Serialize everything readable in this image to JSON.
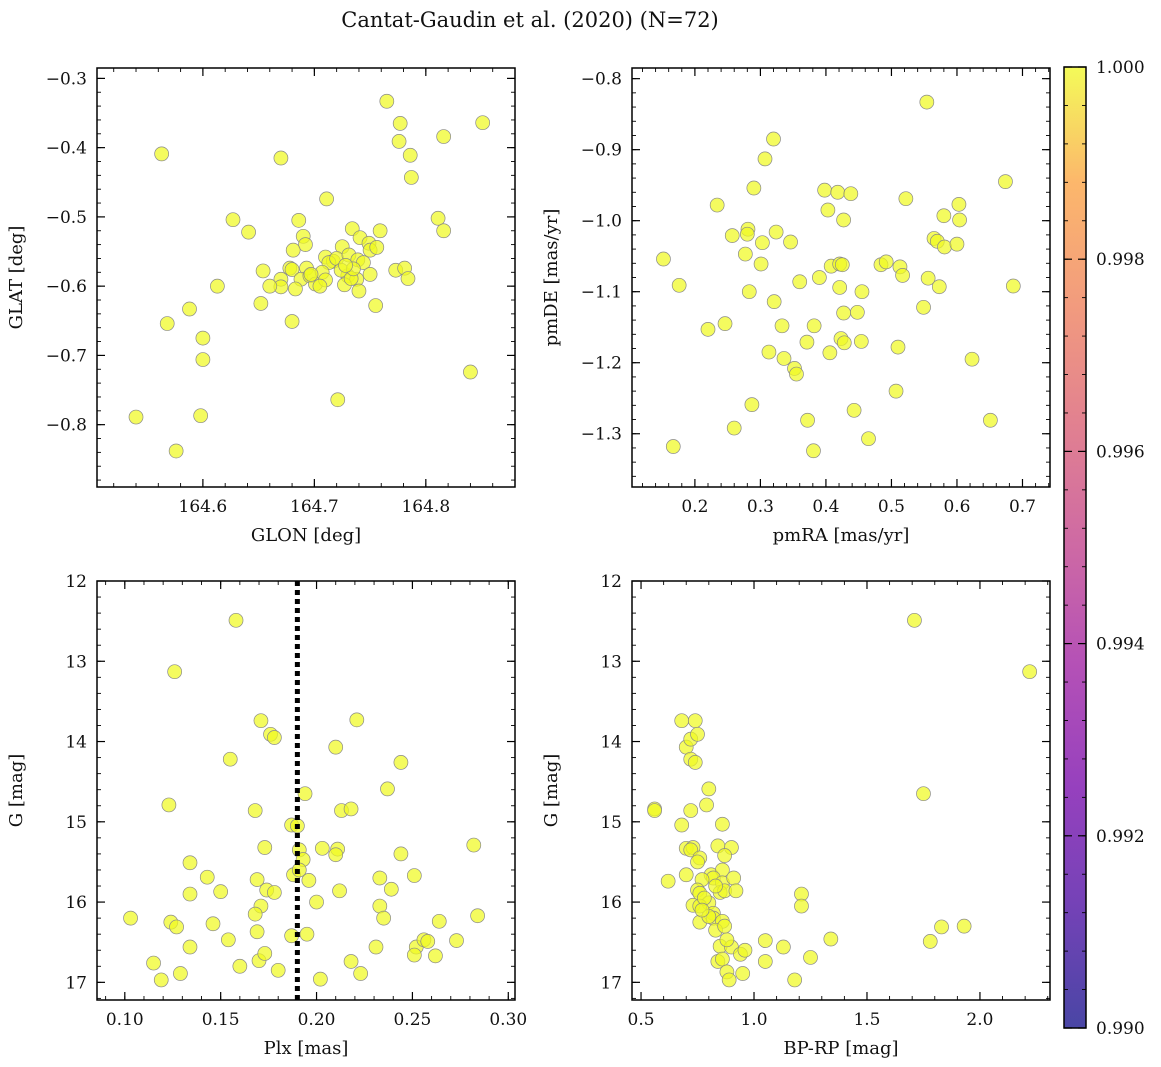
{
  "title": "Cantat-Gaudin et al. (2020) (N=72)",
  "colorbar": {
    "min": 0.99,
    "max": 1.0,
    "ticks": [
      "0.990",
      "0.992",
      "0.994",
      "0.996",
      "0.998",
      "1.000"
    ],
    "colormap": "plasma"
  },
  "chart_data": [
    {
      "type": "scatter",
      "name": "glon-glat",
      "xlabel": "GLON [deg]",
      "ylabel": "GLAT [deg]",
      "xlim": [
        164.505,
        164.88
      ],
      "ylim": [
        -0.89,
        -0.285
      ],
      "xticks": [
        {
          "v": 164.6,
          "l": "164.6"
        },
        {
          "v": 164.7,
          "l": "164.7"
        },
        {
          "v": 164.8,
          "l": "164.8"
        }
      ],
      "yticks": [
        {
          "v": -0.3,
          "l": "−0.3"
        },
        {
          "v": -0.4,
          "l": "−0.4"
        },
        {
          "v": -0.5,
          "l": "−0.5"
        },
        {
          "v": -0.6,
          "l": "−0.6"
        },
        {
          "v": -0.7,
          "l": "−0.7"
        },
        {
          "v": -0.8,
          "l": "−0.8"
        }
      ],
      "xminor": 0.02,
      "yminor": 0.02,
      "points": [
        [
          164.563,
          -0.409
        ],
        [
          164.67,
          -0.415
        ],
        [
          164.765,
          -0.333
        ],
        [
          164.777,
          -0.365
        ],
        [
          164.776,
          -0.391
        ],
        [
          164.786,
          -0.411
        ],
        [
          164.816,
          -0.384
        ],
        [
          164.851,
          -0.364
        ],
        [
          164.787,
          -0.443
        ],
        [
          164.711,
          -0.474
        ],
        [
          164.627,
          -0.504
        ],
        [
          164.641,
          -0.522
        ],
        [
          164.686,
          -0.505
        ],
        [
          164.69,
          -0.528
        ],
        [
          164.692,
          -0.54
        ],
        [
          164.681,
          -0.548
        ],
        [
          164.725,
          -0.543
        ],
        [
          164.734,
          -0.517
        ],
        [
          164.741,
          -0.53
        ],
        [
          164.749,
          -0.538
        ],
        [
          164.75,
          -0.548
        ],
        [
          164.756,
          -0.544
        ],
        [
          164.759,
          -0.52
        ],
        [
          164.811,
          -0.502
        ],
        [
          164.816,
          -0.52
        ],
        [
          164.71,
          -0.558
        ],
        [
          164.717,
          -0.564
        ],
        [
          164.713,
          -0.566
        ],
        [
          164.72,
          -0.56
        ],
        [
          164.731,
          -0.555
        ],
        [
          164.739,
          -0.562
        ],
        [
          164.744,
          -0.566
        ],
        [
          164.73,
          -0.585
        ],
        [
          164.738,
          -0.59
        ],
        [
          164.654,
          -0.578
        ],
        [
          164.67,
          -0.59
        ],
        [
          164.678,
          -0.574
        ],
        [
          164.68,
          -0.576
        ],
        [
          164.693,
          -0.574
        ],
        [
          164.688,
          -0.59
        ],
        [
          164.696,
          -0.585
        ],
        [
          164.701,
          -0.597
        ],
        [
          164.707,
          -0.58
        ],
        [
          164.71,
          -0.591
        ],
        [
          164.724,
          -0.577
        ],
        [
          164.727,
          -0.598
        ],
        [
          164.733,
          -0.589
        ],
        [
          164.74,
          -0.607
        ],
        [
          164.773,
          -0.577
        ],
        [
          164.781,
          -0.574
        ],
        [
          164.784,
          -0.589
        ],
        [
          164.613,
          -0.6
        ],
        [
          164.67,
          -0.601
        ],
        [
          164.683,
          -0.604
        ],
        [
          164.652,
          -0.625
        ],
        [
          164.755,
          -0.628
        ],
        [
          164.68,
          -0.651
        ],
        [
          164.588,
          -0.633
        ],
        [
          164.568,
          -0.654
        ],
        [
          164.6,
          -0.675
        ],
        [
          164.6,
          -0.706
        ],
        [
          164.721,
          -0.764
        ],
        [
          164.84,
          -0.724
        ],
        [
          164.54,
          -0.789
        ],
        [
          164.598,
          -0.787
        ],
        [
          164.576,
          -0.838
        ],
        [
          164.697,
          -0.583
        ],
        [
          164.705,
          -0.6
        ],
        [
          164.735,
          -0.575
        ],
        [
          164.75,
          -0.583
        ],
        [
          164.66,
          -0.6
        ],
        [
          164.728,
          -0.57
        ]
      ]
    },
    {
      "type": "scatter",
      "name": "pmra-pmde",
      "xlabel": "pmRA [mas/yr]",
      "ylabel": "pmDE [mas/yr]",
      "xlim": [
        0.104,
        0.742
      ],
      "ylim": [
        -1.375,
        -0.785
      ],
      "xticks": [
        {
          "v": 0.2,
          "l": "0.2"
        },
        {
          "v": 0.3,
          "l": "0.3"
        },
        {
          "v": 0.4,
          "l": "0.4"
        },
        {
          "v": 0.5,
          "l": "0.5"
        },
        {
          "v": 0.6,
          "l": "0.6"
        },
        {
          "v": 0.7,
          "l": "0.7"
        }
      ],
      "yticks": [
        {
          "v": -0.8,
          "l": "−0.8"
        },
        {
          "v": -0.9,
          "l": "−0.9"
        },
        {
          "v": -1.0,
          "l": "−1.0"
        },
        {
          "v": -1.1,
          "l": "−1.1"
        },
        {
          "v": -1.2,
          "l": "−1.2"
        },
        {
          "v": -1.3,
          "l": "−1.3"
        }
      ],
      "xminor": 0.02,
      "yminor": 0.02,
      "points": [
        [
          0.554,
          -0.833
        ],
        [
          0.32,
          -0.885
        ],
        [
          0.307,
          -0.913
        ],
        [
          0.29,
          -0.954
        ],
        [
          0.674,
          -0.945
        ],
        [
          0.234,
          -0.978
        ],
        [
          0.398,
          -0.957
        ],
        [
          0.418,
          -0.96
        ],
        [
          0.438,
          -0.962
        ],
        [
          0.403,
          -0.985
        ],
        [
          0.427,
          -0.999
        ],
        [
          0.522,
          -0.969
        ],
        [
          0.58,
          -0.993
        ],
        [
          0.603,
          -0.977
        ],
        [
          0.604,
          -0.999
        ],
        [
          0.257,
          -1.021
        ],
        [
          0.281,
          -1.012
        ],
        [
          0.28,
          -1.019
        ],
        [
          0.324,
          -1.016
        ],
        [
          0.303,
          -1.031
        ],
        [
          0.346,
          -1.03
        ],
        [
          0.277,
          -1.047
        ],
        [
          0.301,
          -1.061
        ],
        [
          0.565,
          -1.025
        ],
        [
          0.57,
          -1.029
        ],
        [
          0.581,
          -1.037
        ],
        [
          0.6,
          -1.033
        ],
        [
          0.152,
          -1.054
        ],
        [
          0.408,
          -1.064
        ],
        [
          0.421,
          -1.061
        ],
        [
          0.425,
          -1.062
        ],
        [
          0.484,
          -1.062
        ],
        [
          0.492,
          -1.058
        ],
        [
          0.513,
          -1.065
        ],
        [
          0.517,
          -1.077
        ],
        [
          0.556,
          -1.081
        ],
        [
          0.176,
          -1.091
        ],
        [
          0.283,
          -1.1
        ],
        [
          0.36,
          -1.086
        ],
        [
          0.39,
          -1.08
        ],
        [
          0.421,
          -1.094
        ],
        [
          0.455,
          -1.1
        ],
        [
          0.573,
          -1.093
        ],
        [
          0.686,
          -1.092
        ],
        [
          0.321,
          -1.114
        ],
        [
          0.427,
          -1.13
        ],
        [
          0.448,
          -1.129
        ],
        [
          0.549,
          -1.122
        ],
        [
          0.22,
          -1.153
        ],
        [
          0.246,
          -1.145
        ],
        [
          0.333,
          -1.148
        ],
        [
          0.382,
          -1.148
        ],
        [
          0.313,
          -1.185
        ],
        [
          0.371,
          -1.171
        ],
        [
          0.423,
          -1.166
        ],
        [
          0.428,
          -1.172
        ],
        [
          0.454,
          -1.17
        ],
        [
          0.406,
          -1.186
        ],
        [
          0.51,
          -1.178
        ],
        [
          0.336,
          -1.194
        ],
        [
          0.352,
          -1.208
        ],
        [
          0.355,
          -1.216
        ],
        [
          0.623,
          -1.195
        ],
        [
          0.507,
          -1.24
        ],
        [
          0.287,
          -1.259
        ],
        [
          0.443,
          -1.267
        ],
        [
          0.26,
          -1.292
        ],
        [
          0.372,
          -1.281
        ],
        [
          0.651,
          -1.281
        ],
        [
          0.167,
          -1.318
        ],
        [
          0.381,
          -1.324
        ],
        [
          0.465,
          -1.307
        ]
      ]
    },
    {
      "type": "scatter",
      "name": "plx-g",
      "xlabel": "Plx [mas]",
      "ylabel": "G [mag]",
      "xlim": [
        0.0855,
        0.3035
      ],
      "ylim": [
        17.22,
        12.0
      ],
      "xticks": [
        {
          "v": 0.1,
          "l": "0.10"
        },
        {
          "v": 0.15,
          "l": "0.15"
        },
        {
          "v": 0.2,
          "l": "0.20"
        },
        {
          "v": 0.25,
          "l": "0.25"
        },
        {
          "v": 0.3,
          "l": "0.30"
        }
      ],
      "yticks": [
        {
          "v": 12,
          "l": "12"
        },
        {
          "v": 13,
          "l": "13"
        },
        {
          "v": 14,
          "l": "14"
        },
        {
          "v": 15,
          "l": "15"
        },
        {
          "v": 16,
          "l": "16"
        },
        {
          "v": 17,
          "l": "17"
        }
      ],
      "xminor": 0.01,
      "yminor": 0.2,
      "vline": 0.19,
      "points": [
        [
          0.158,
          12.49
        ],
        [
          0.126,
          13.13
        ],
        [
          0.171,
          13.74
        ],
        [
          0.221,
          13.73
        ],
        [
          0.176,
          13.91
        ],
        [
          0.178,
          13.95
        ],
        [
          0.21,
          14.07
        ],
        [
          0.155,
          14.22
        ],
        [
          0.244,
          14.26
        ],
        [
          0.237,
          14.59
        ],
        [
          0.194,
          14.65
        ],
        [
          0.123,
          14.79
        ],
        [
          0.168,
          14.86
        ],
        [
          0.213,
          14.86
        ],
        [
          0.218,
          14.84
        ],
        [
          0.187,
          15.04
        ],
        [
          0.19,
          15.05
        ],
        [
          0.173,
          15.32
        ],
        [
          0.191,
          15.35
        ],
        [
          0.203,
          15.33
        ],
        [
          0.211,
          15.34
        ],
        [
          0.21,
          15.41
        ],
        [
          0.244,
          15.4
        ],
        [
          0.193,
          15.47
        ],
        [
          0.134,
          15.51
        ],
        [
          0.143,
          15.69
        ],
        [
          0.169,
          15.72
        ],
        [
          0.188,
          15.66
        ],
        [
          0.191,
          15.6
        ],
        [
          0.196,
          15.73
        ],
        [
          0.233,
          15.7
        ],
        [
          0.251,
          15.67
        ],
        [
          0.134,
          15.9
        ],
        [
          0.15,
          15.87
        ],
        [
          0.174,
          15.85
        ],
        [
          0.178,
          15.88
        ],
        [
          0.212,
          15.86
        ],
        [
          0.239,
          15.84
        ],
        [
          0.171,
          16.05
        ],
        [
          0.2,
          16.0
        ],
        [
          0.233,
          16.05
        ],
        [
          0.103,
          16.2
        ],
        [
          0.168,
          16.15
        ],
        [
          0.235,
          16.2
        ],
        [
          0.282,
          15.29
        ],
        [
          0.124,
          16.25
        ],
        [
          0.127,
          16.31
        ],
        [
          0.146,
          16.27
        ],
        [
          0.264,
          16.24
        ],
        [
          0.284,
          16.17
        ],
        [
          0.134,
          16.56
        ],
        [
          0.154,
          16.47
        ],
        [
          0.169,
          16.37
        ],
        [
          0.187,
          16.42
        ],
        [
          0.231,
          16.56
        ],
        [
          0.252,
          16.56
        ],
        [
          0.256,
          16.47
        ],
        [
          0.258,
          16.49
        ],
        [
          0.273,
          16.48
        ],
        [
          0.115,
          16.76
        ],
        [
          0.16,
          16.8
        ],
        [
          0.17,
          16.73
        ],
        [
          0.173,
          16.64
        ],
        [
          0.218,
          16.74
        ],
        [
          0.251,
          16.66
        ],
        [
          0.262,
          16.67
        ],
        [
          0.119,
          16.97
        ],
        [
          0.129,
          16.89
        ],
        [
          0.202,
          16.96
        ],
        [
          0.223,
          16.89
        ],
        [
          0.195,
          16.4
        ],
        [
          0.18,
          16.85
        ]
      ]
    },
    {
      "type": "scatter",
      "name": "bprp-g",
      "xlabel": "BP-RP [mag]",
      "ylabel": "G [mag]",
      "xlim": [
        0.46,
        2.31
      ],
      "ylim": [
        17.22,
        12.0
      ],
      "xticks": [
        {
          "v": 0.5,
          "l": "0.5"
        },
        {
          "v": 1.0,
          "l": "1.0"
        },
        {
          "v": 1.5,
          "l": "1.5"
        },
        {
          "v": 2.0,
          "l": "2.0"
        }
      ],
      "yticks": [
        {
          "v": 12,
          "l": "12"
        },
        {
          "v": 13,
          "l": "13"
        },
        {
          "v": 14,
          "l": "14"
        },
        {
          "v": 15,
          "l": "15"
        },
        {
          "v": 16,
          "l": "16"
        },
        {
          "v": 17,
          "l": "17"
        }
      ],
      "xminor": 0.1,
      "yminor": 0.2,
      "points": [
        [
          1.71,
          12.49
        ],
        [
          2.22,
          13.13
        ],
        [
          0.68,
          13.74
        ],
        [
          0.74,
          13.74
        ],
        [
          0.7,
          14.07
        ],
        [
          0.72,
          13.97
        ],
        [
          0.75,
          13.91
        ],
        [
          0.72,
          14.22
        ],
        [
          0.74,
          14.26
        ],
        [
          0.8,
          14.59
        ],
        [
          1.75,
          14.65
        ],
        [
          0.79,
          14.79
        ],
        [
          0.56,
          14.84
        ],
        [
          0.56,
          14.86
        ],
        [
          0.72,
          14.86
        ],
        [
          0.86,
          15.03
        ],
        [
          0.68,
          15.04
        ],
        [
          0.7,
          15.33
        ],
        [
          0.73,
          15.32
        ],
        [
          0.72,
          15.35
        ],
        [
          0.84,
          15.3
        ],
        [
          0.9,
          15.32
        ],
        [
          0.76,
          15.45
        ],
        [
          0.75,
          15.5
        ],
        [
          0.87,
          15.42
        ],
        [
          0.81,
          15.66
        ],
        [
          0.86,
          15.6
        ],
        [
          0.62,
          15.74
        ],
        [
          0.7,
          15.66
        ],
        [
          0.82,
          15.7
        ],
        [
          0.77,
          15.72
        ],
        [
          0.86,
          15.76
        ],
        [
          0.91,
          15.7
        ],
        [
          0.75,
          15.85
        ],
        [
          0.73,
          16.04
        ],
        [
          0.76,
          15.89
        ],
        [
          0.85,
          15.88
        ],
        [
          0.87,
          15.86
        ],
        [
          0.92,
          15.86
        ],
        [
          1.21,
          15.9
        ],
        [
          0.8,
          16.01
        ],
        [
          0.76,
          16.05
        ],
        [
          0.82,
          16.14
        ],
        [
          0.82,
          16.2
        ],
        [
          0.76,
          16.25
        ],
        [
          0.86,
          16.24
        ],
        [
          1.21,
          16.05
        ],
        [
          1.78,
          16.49
        ],
        [
          1.83,
          16.31
        ],
        [
          1.93,
          16.3
        ],
        [
          0.85,
          16.55
        ],
        [
          0.9,
          16.56
        ],
        [
          0.94,
          16.65
        ],
        [
          1.05,
          16.48
        ],
        [
          1.13,
          16.56
        ],
        [
          1.34,
          16.46
        ],
        [
          0.84,
          16.74
        ],
        [
          0.86,
          16.71
        ],
        [
          1.05,
          16.74
        ],
        [
          1.25,
          16.69
        ],
        [
          0.88,
          16.87
        ],
        [
          0.89,
          16.97
        ],
        [
          0.95,
          16.89
        ],
        [
          1.18,
          16.97
        ],
        [
          0.88,
          16.47
        ],
        [
          0.8,
          16.18
        ],
        [
          0.83,
          16.35
        ],
        [
          0.96,
          16.6
        ],
        [
          0.78,
          15.95
        ],
        [
          0.83,
          15.8
        ],
        [
          0.77,
          16.1
        ],
        [
          0.87,
          16.3
        ]
      ]
    }
  ]
}
